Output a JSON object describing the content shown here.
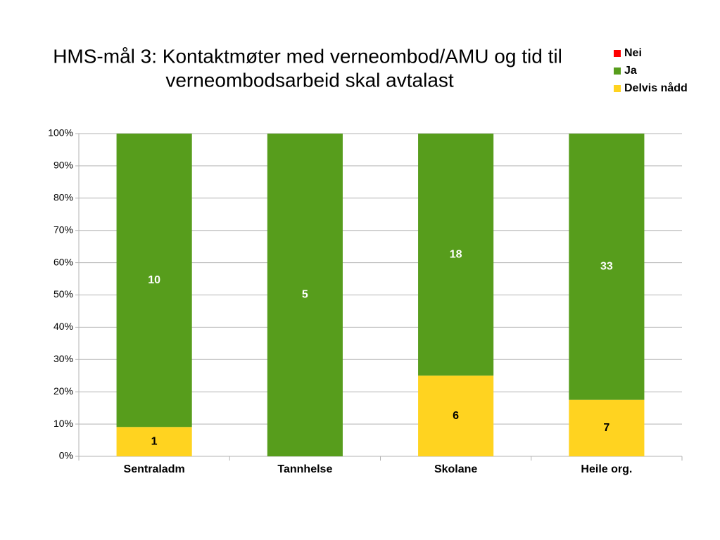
{
  "chart_data": {
    "type": "bar",
    "stack": "percent",
    "title": [
      "HMS-mål 3: Kontaktmøter med verneombod/AMU og tid til",
      "verneombodsarbeid skal avtalast"
    ],
    "categories": [
      "Sentraladm",
      "Tannhelse",
      "Skolane",
      "Heile org."
    ],
    "series": [
      {
        "name": "Delvis nådd",
        "color": "#ffd320",
        "label_color": "#000000",
        "values": [
          1,
          0,
          6,
          7
        ]
      },
      {
        "name": "Ja",
        "color": "#579d1c",
        "label_color": "#ffffff",
        "values": [
          10,
          5,
          18,
          33
        ]
      },
      {
        "name": "Nei",
        "color": "#ff0000",
        "label_color": "#ffffff",
        "values": [
          0,
          0,
          0,
          0
        ]
      }
    ],
    "ylim": [
      0,
      100
    ],
    "yticks": [
      {
        "value": 0,
        "label": "0%"
      },
      {
        "value": 10,
        "label": "10%"
      },
      {
        "value": 20,
        "label": "20%"
      },
      {
        "value": 30,
        "label": "30%"
      },
      {
        "value": 40,
        "label": "40%"
      },
      {
        "value": 50,
        "label": "50%"
      },
      {
        "value": 60,
        "label": "60%"
      },
      {
        "value": 70,
        "label": "70%"
      },
      {
        "value": 80,
        "label": "80%"
      },
      {
        "value": 90,
        "label": "90%"
      },
      {
        "value": 100,
        "label": "100%"
      }
    ],
    "grid": true,
    "legend": "top-right"
  }
}
